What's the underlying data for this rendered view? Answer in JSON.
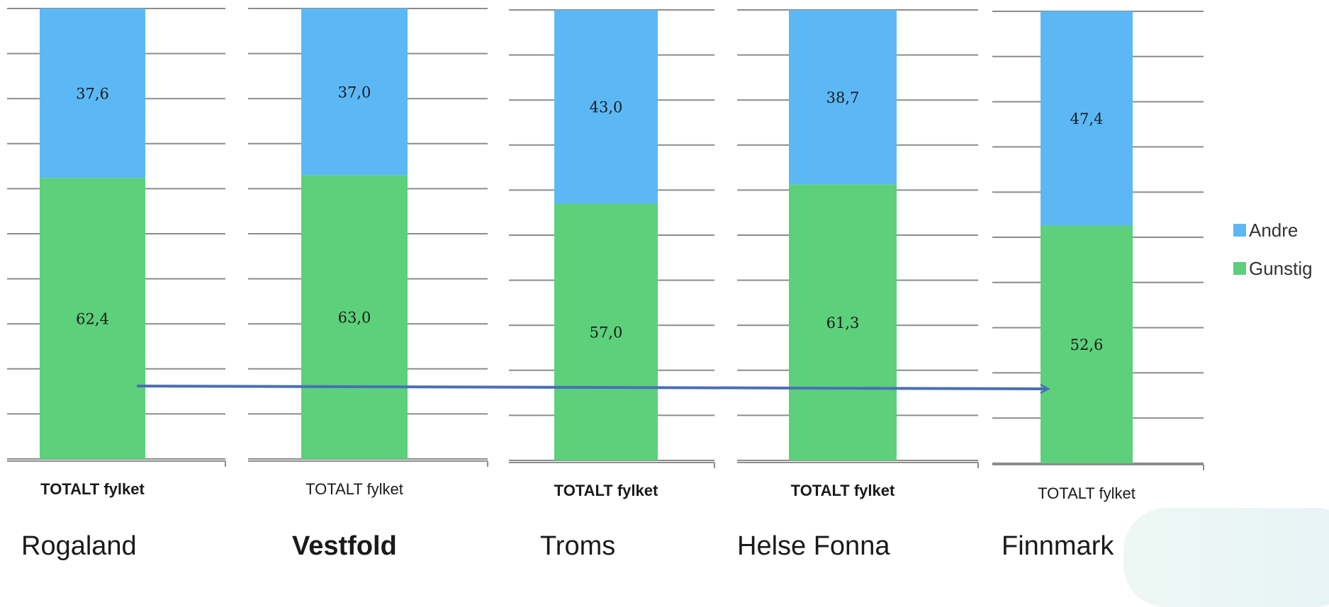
{
  "chart_data": {
    "type": "bar",
    "stacked": true,
    "categories": [
      "TOTALT fylket",
      "TOTALT fylket",
      "TOTALT fylket",
      "TOTALT fylket",
      "TOTALT fylket"
    ],
    "panels": [
      "Rogaland",
      "Vestfold",
      "Troms",
      "Helse Fonna",
      "Finnmark"
    ],
    "highlighted_panel": "Vestfold",
    "series": [
      {
        "name": "Gunstig",
        "color": "#5cd07a",
        "values": [
          62.4,
          63.0,
          57.0,
          61.3,
          52.6
        ],
        "labels": [
          "62,4",
          "63,0",
          "57,0",
          "61,3",
          "52,6"
        ]
      },
      {
        "name": "Andre",
        "color": "#5bb8f5",
        "values": [
          37.6,
          37.0,
          43.0,
          38.7,
          47.4
        ],
        "labels": [
          "37,6",
          "37,0",
          "43,0",
          "38,7",
          "47,4"
        ]
      }
    ],
    "ylim": [
      0,
      100
    ],
    "grid": true,
    "legend_position": "right",
    "annotation": "arrow from Rogaland bar to Finnmark bar"
  }
}
